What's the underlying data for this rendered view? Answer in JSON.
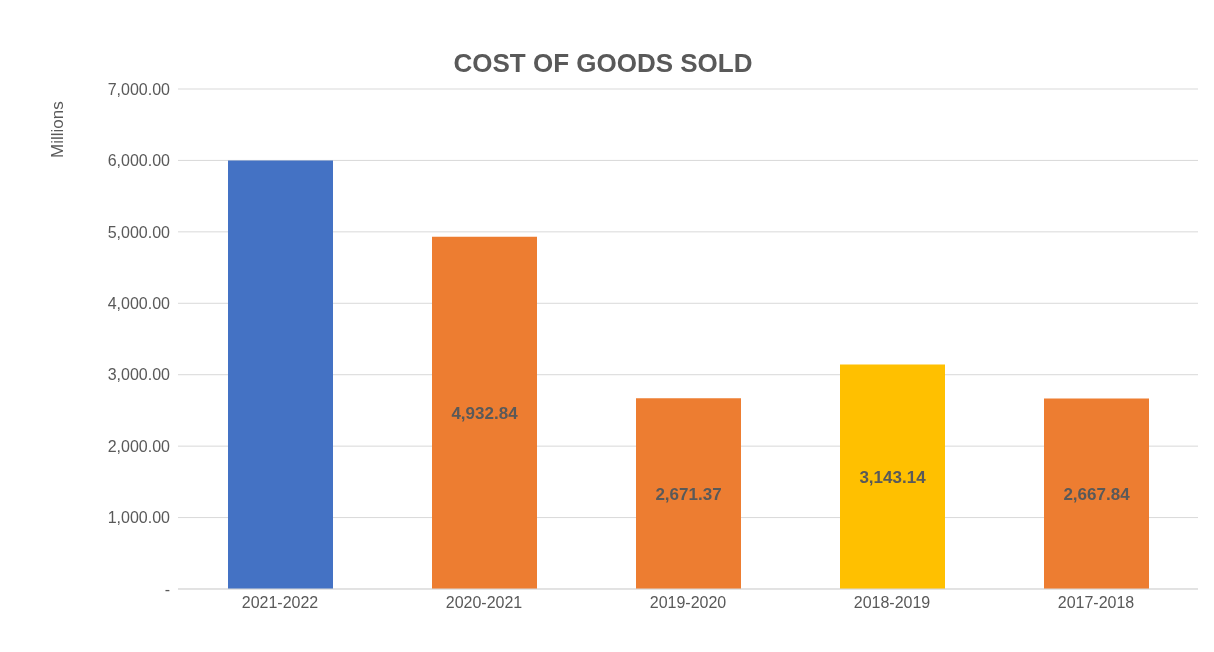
{
  "chart_data": {
    "type": "bar",
    "title": "COST OF GOODS SOLD",
    "ylabel": "Millions",
    "categories": [
      "2021-2022",
      "2020-2021",
      "2019-2020",
      "2018-2019",
      "2017-2018"
    ],
    "values": [
      6000,
      4932.84,
      2671.37,
      3143.14,
      2667.84
    ],
    "colors": [
      "#4472c4",
      "#ed7d31",
      "#ed7d31",
      "#ffc000",
      "#ed7d31"
    ],
    "value_labels": [
      null,
      "4,932.84",
      "2,671.37",
      "3,143.14",
      "2,667.84"
    ],
    "ylim": [
      0,
      7000
    ],
    "yticks": [
      {
        "value": 0,
        "label": "-"
      },
      {
        "value": 1000,
        "label": "1,000.00"
      },
      {
        "value": 2000,
        "label": "2,000.00"
      },
      {
        "value": 3000,
        "label": "3,000.00"
      },
      {
        "value": 4000,
        "label": "4,000.00"
      },
      {
        "value": 5000,
        "label": "5,000.00"
      },
      {
        "value": 6000,
        "label": "6,000.00"
      },
      {
        "value": 7000,
        "label": "7,000.00"
      }
    ],
    "grid": "y"
  }
}
